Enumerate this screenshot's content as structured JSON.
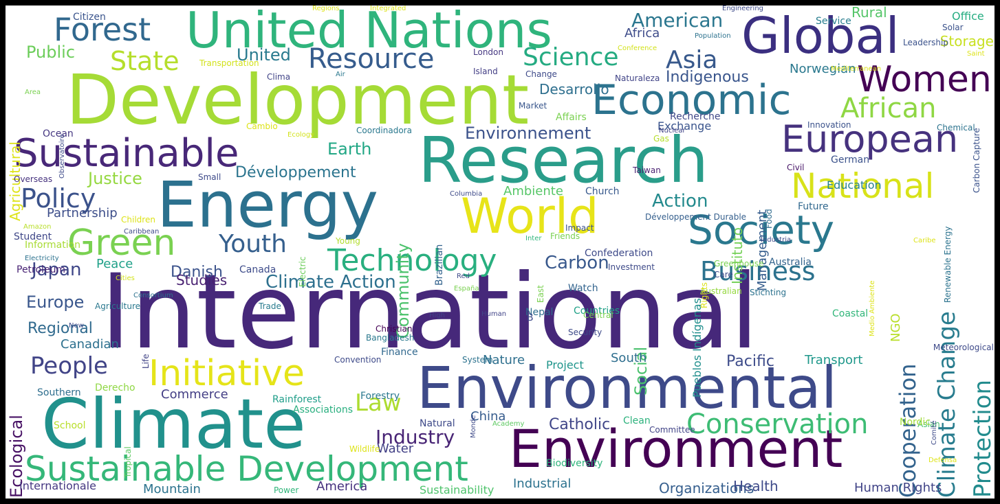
{
  "words": [
    {
      "text": "International",
      "color": "#46287a"
    },
    {
      "text": "Development",
      "color": "#a5db36"
    },
    {
      "text": "Climate",
      "color": "#21918c"
    },
    {
      "text": "Research",
      "color": "#2a9d8a"
    },
    {
      "text": "Energy",
      "color": "#2c718e"
    },
    {
      "text": "Environmental",
      "color": "#3e4a89"
    },
    {
      "text": "Environment",
      "color": "#440154"
    },
    {
      "text": "United Nations",
      "color": "#2fb47c"
    },
    {
      "text": "Global",
      "color": "#3b2f80"
    },
    {
      "text": "World",
      "color": "#e7e419"
    },
    {
      "text": "Sustainable",
      "color": "#482878"
    },
    {
      "text": "Economic",
      "color": "#2c738e"
    },
    {
      "text": "Society",
      "color": "#2a788e"
    },
    {
      "text": "European",
      "color": "#46327e"
    },
    {
      "text": "Initiative",
      "color": "#e5e419"
    },
    {
      "text": "Sustainable Development",
      "color": "#35b779"
    },
    {
      "text": "Green",
      "color": "#7ad151"
    },
    {
      "text": "National",
      "color": "#d8e219"
    },
    {
      "text": "Forest",
      "color": "#31688e"
    },
    {
      "text": "Women",
      "color": "#440154"
    },
    {
      "text": "Technology",
      "color": "#29af7f"
    },
    {
      "text": "Business",
      "color": "#2c728e"
    },
    {
      "text": "Conservation",
      "color": "#3dbc74"
    },
    {
      "text": "Resource",
      "color": "#365c8d"
    },
    {
      "text": "Science",
      "color": "#25ab82"
    },
    {
      "text": "Asia",
      "color": "#38598c"
    },
    {
      "text": "African",
      "color": "#8fd744"
    },
    {
      "text": "Policy",
      "color": "#3b528b"
    },
    {
      "text": "People",
      "color": "#414487"
    },
    {
      "text": "State",
      "color": "#b5de2b"
    },
    {
      "text": "Youth",
      "color": "#355f8d"
    },
    {
      "text": "Cooperation",
      "color": "#33638d"
    },
    {
      "text": "Climate Change",
      "color": "#287c8e"
    },
    {
      "text": "Protection",
      "color": "#228b8d"
    },
    {
      "text": "Industry",
      "color": "#482475"
    },
    {
      "text": "Law",
      "color": "#addc30"
    },
    {
      "text": "Japan",
      "color": "#3f4788"
    },
    {
      "text": "Action",
      "color": "#238a8d"
    },
    {
      "text": "Carbon",
      "color": "#38588c"
    },
    {
      "text": "Climate Action",
      "color": "#2d708e"
    },
    {
      "text": "American",
      "color": "#2a768e"
    },
    {
      "text": "Public",
      "color": "#6ccd5a"
    },
    {
      "text": "United",
      "color": "#297a8e"
    },
    {
      "text": "Environnement",
      "color": "#3b528b"
    },
    {
      "text": "Earth",
      "color": "#22a785"
    },
    {
      "text": "Justice",
      "color": "#95d840"
    },
    {
      "text": "Développement",
      "color": "#2b748e"
    },
    {
      "text": "Europe",
      "color": "#39568c"
    },
    {
      "text": "Regional",
      "color": "#306a8e"
    },
    {
      "text": "Ecological",
      "color": "#471164"
    },
    {
      "text": "Agricultural",
      "color": "#dde318"
    },
    {
      "text": "Pacific",
      "color": "#3e4c8a"
    },
    {
      "text": "Social",
      "color": "#4ac16d"
    },
    {
      "text": "Community",
      "color": "#4cc26c"
    },
    {
      "text": "Instituto",
      "color": "#73d056"
    },
    {
      "text": "Management",
      "color": "#365d8d"
    },
    {
      "text": "Indigenous",
      "color": "#39558c"
    },
    {
      "text": "Desarrollo",
      "color": "#2e6f8e"
    },
    {
      "text": "Rural",
      "color": "#54c568"
    },
    {
      "text": "Office",
      "color": "#26ad81"
    },
    {
      "text": "Storage",
      "color": "#c8e020"
    },
    {
      "text": "Africa",
      "color": "#3e4c8a"
    },
    {
      "text": "Norwegian",
      "color": "#2a788e"
    },
    {
      "text": "Danish",
      "color": "#3b528b"
    },
    {
      "text": "Studies",
      "color": "#482071"
    },
    {
      "text": "Peace",
      "color": "#1fa088"
    },
    {
      "text": "Commerce",
      "color": "#433e85"
    },
    {
      "text": "Partnership",
      "color": "#3d4e8a"
    },
    {
      "text": "Canadian",
      "color": "#2d708e"
    },
    {
      "text": "NGO",
      "color": "#b8de29"
    },
    {
      "text": "South",
      "color": "#2e6e8e"
    },
    {
      "text": "Transport",
      "color": "#1f988b"
    },
    {
      "text": "Nature",
      "color": "#2e6f8e"
    },
    {
      "text": "Project",
      "color": "#1f958b"
    },
    {
      "text": "Catholic",
      "color": "#404688"
    },
    {
      "text": "China",
      "color": "#365c8d"
    },
    {
      "text": "Water",
      "color": "#424086"
    },
    {
      "text": "America",
      "color": "#46327e"
    },
    {
      "text": "Mountain",
      "color": "#2c738e"
    },
    {
      "text": "Internationale",
      "color": "#453781"
    },
    {
      "text": "Organizations",
      "color": "#355e8d"
    },
    {
      "text": "Health",
      "color": "#3e4a89"
    },
    {
      "text": "Industrial",
      "color": "#2c728e"
    },
    {
      "text": "Sustainability",
      "color": "#4ec36b"
    },
    {
      "text": "Human Rights",
      "color": "#414487"
    },
    {
      "text": "Ambiente",
      "color": "#56c667"
    },
    {
      "text": "Church",
      "color": "#38598c"
    },
    {
      "text": "Education",
      "color": "#26828e"
    },
    {
      "text": "German",
      "color": "#3b528b"
    },
    {
      "text": "Future",
      "color": "#31688e"
    },
    {
      "text": "Renewable Energy",
      "color": "#2c738e"
    },
    {
      "text": "Australia",
      "color": "#33638d"
    },
    {
      "text": "Australian",
      "color": "#95d840"
    },
    {
      "text": "Stichting",
      "color": "#2c728e"
    },
    {
      "text": "Pueblos Indígenas",
      "color": "#218f8d"
    },
    {
      "text": "Exchange",
      "color": "#3a548c"
    },
    {
      "text": "Gas",
      "color": "#b5de2b"
    },
    {
      "text": "Affairs",
      "color": "#7ad151"
    },
    {
      "text": "Recherche",
      "color": "#3f4788"
    },
    {
      "text": "Ocean",
      "color": "#453781"
    },
    {
      "text": "Overseas",
      "color": "#46327e"
    },
    {
      "text": "Information",
      "color": "#a8db34"
    },
    {
      "text": "Student",
      "color": "#3f4788"
    },
    {
      "text": "Petroleum",
      "color": "#482374"
    },
    {
      "text": "Agriculture",
      "color": "#2a788e"
    },
    {
      "text": "Life",
      "color": "#414487"
    },
    {
      "text": "Trade",
      "color": "#297b8e"
    },
    {
      "text": "Young",
      "color": "#b2dd2d"
    },
    {
      "text": "Canada",
      "color": "#3e4c8a"
    },
    {
      "text": "Confederation",
      "color": "#3e4a89"
    },
    {
      "text": "Christian",
      "color": "#440154"
    },
    {
      "text": "Finance",
      "color": "#31688e"
    },
    {
      "text": "Nepal",
      "color": "#2e6e8e"
    },
    {
      "text": "Watch",
      "color": "#32648e"
    },
    {
      "text": "Countries",
      "color": "#1fa187"
    },
    {
      "text": "Coastal",
      "color": "#32b67a"
    },
    {
      "text": "Asian",
      "color": "#46c06f"
    },
    {
      "text": "Nordic",
      "color": "#a0da39"
    },
    {
      "text": "Clean",
      "color": "#2db27d"
    },
    {
      "text": "Committee",
      "color": "#414487"
    },
    {
      "text": "Natural",
      "color": "#3e4a89"
    },
    {
      "text": "Brazilian",
      "color": "#33638d"
    },
    {
      "text": "Forestry",
      "color": "#2a788e"
    },
    {
      "text": "Rainforest",
      "color": "#1f9e89"
    },
    {
      "text": "Associations",
      "color": "#29af7f"
    },
    {
      "text": "Derecho",
      "color": "#8fd744"
    },
    {
      "text": "Southern",
      "color": "#2e6e8e"
    },
    {
      "text": "Tropical",
      "color": "#5ec962"
    },
    {
      "text": "School",
      "color": "#b8de29"
    },
    {
      "text": "Wildlife",
      "color": "#dde318"
    },
    {
      "text": "Power",
      "color": "#31b57b"
    },
    {
      "text": "Citizen",
      "color": "#3a548c"
    },
    {
      "text": "Transportation",
      "color": "#d2e21b"
    },
    {
      "text": "London",
      "color": "#453781"
    },
    {
      "text": "Island",
      "color": "#433e85"
    },
    {
      "text": "Change",
      "color": "#3e4a89"
    },
    {
      "text": "Market",
      "color": "#39568c"
    },
    {
      "text": "Coordinadora",
      "color": "#2a788e"
    },
    {
      "text": "Taiwan",
      "color": "#481f70"
    },
    {
      "text": "Food",
      "color": "#2f6c8e"
    },
    {
      "text": "Civil",
      "color": "#481668"
    },
    {
      "text": "Chemical",
      "color": "#2c738e"
    },
    {
      "text": "Service",
      "color": "#287d8e"
    },
    {
      "text": "Solar",
      "color": "#3b528b"
    },
    {
      "text": "Leadership",
      "color": "#3b528b"
    },
    {
      "text": "Carbon Capture",
      "color": "#3b528b"
    },
    {
      "text": "Innovation",
      "color": "#3b528b"
    },
    {
      "text": "Développement Durable",
      "color": "#355f8d"
    },
    {
      "text": "Impact",
      "color": "#3b528b"
    },
    {
      "text": "Electric",
      "color": "#6ccd5a"
    },
    {
      "text": "Children",
      "color": "#dde318"
    },
    {
      "text": "Amazon",
      "color": "#b8de29"
    },
    {
      "text": "Electricity",
      "color": "#2c728e"
    },
    {
      "text": "Small",
      "color": "#3e4a89"
    },
    {
      "text": "Ecology",
      "color": "#d2e21b"
    },
    {
      "text": "Investment",
      "color": "#3e4a89"
    },
    {
      "text": "Greenhouse",
      "color": "#7ad151"
    },
    {
      "text": "Care",
      "color": "#3e4a89"
    },
    {
      "text": "Friends",
      "color": "#7ad151"
    },
    {
      "text": "East",
      "color": "#7ad151"
    },
    {
      "text": "Central",
      "color": "#7ad151"
    },
    {
      "text": "Security",
      "color": "#3e4a89"
    },
    {
      "text": "Industria",
      "color": "#3e4a89"
    },
    {
      "text": "Bangladesh",
      "color": "#2a788e"
    },
    {
      "text": "Convention",
      "color": "#3e4a89"
    },
    {
      "text": "System",
      "color": "#2c728e"
    },
    {
      "text": "Meteorological",
      "color": "#3e4a89"
    },
    {
      "text": "Academy",
      "color": "#5ec962"
    },
    {
      "text": "Biodiversity",
      "color": "#2fb47c"
    },
    {
      "text": "New",
      "color": "#3e4a89"
    },
    {
      "text": "Cities",
      "color": "#d2e21b"
    },
    {
      "text": "Consortium",
      "color": "#2c728e"
    },
    {
      "text": "High",
      "color": "#414487"
    },
    {
      "text": "Human",
      "color": "#414487"
    },
    {
      "text": "España",
      "color": "#7ad151"
    },
    {
      "text": "Red",
      "color": "#3e4a89"
    },
    {
      "text": "Area",
      "color": "#7ad151"
    },
    {
      "text": "Clima",
      "color": "#414487"
    },
    {
      "text": "Air",
      "color": "#2a788e"
    },
    {
      "text": "Naturaleza",
      "color": "#414487"
    },
    {
      "text": "Conference",
      "color": "#d2e21b"
    },
    {
      "text": "Population",
      "color": "#2c728e"
    },
    {
      "text": "Integrated",
      "color": "#dde318"
    },
    {
      "text": "Regions",
      "color": "#dde318"
    },
    {
      "text": "Engineering",
      "color": "#3e4a89"
    },
    {
      "text": "Observatoire",
      "color": "#3e4a89"
    },
    {
      "text": "Mediterranean",
      "color": "#dde318"
    },
    {
      "text": "Saint",
      "color": "#dde318"
    },
    {
      "text": "Nuclear",
      "color": "#414487"
    },
    {
      "text": "Columbia",
      "color": "#3e4a89"
    },
    {
      "text": "Inter",
      "color": "#2fb47c"
    },
    {
      "text": "Caribbean",
      "color": "#3e4a89"
    },
    {
      "text": "Rights",
      "color": "#dde318"
    },
    {
      "text": "Medio Ambiente",
      "color": "#dde318"
    },
    {
      "text": "Monde",
      "color": "#3e4a89"
    },
    {
      "text": "Comité",
      "color": "#3e4a89"
    },
    {
      "text": "Defensa",
      "color": "#dde318"
    },
    {
      "text": "Caribe",
      "color": "#dde318"
    },
    {
      "text": "Cambio",
      "color": "#dde318"
    },
    {
      "text": "B",
      "color": "#3e4a89"
    },
    {
      "text": "C",
      "color": "#414487"
    }
  ]
}
